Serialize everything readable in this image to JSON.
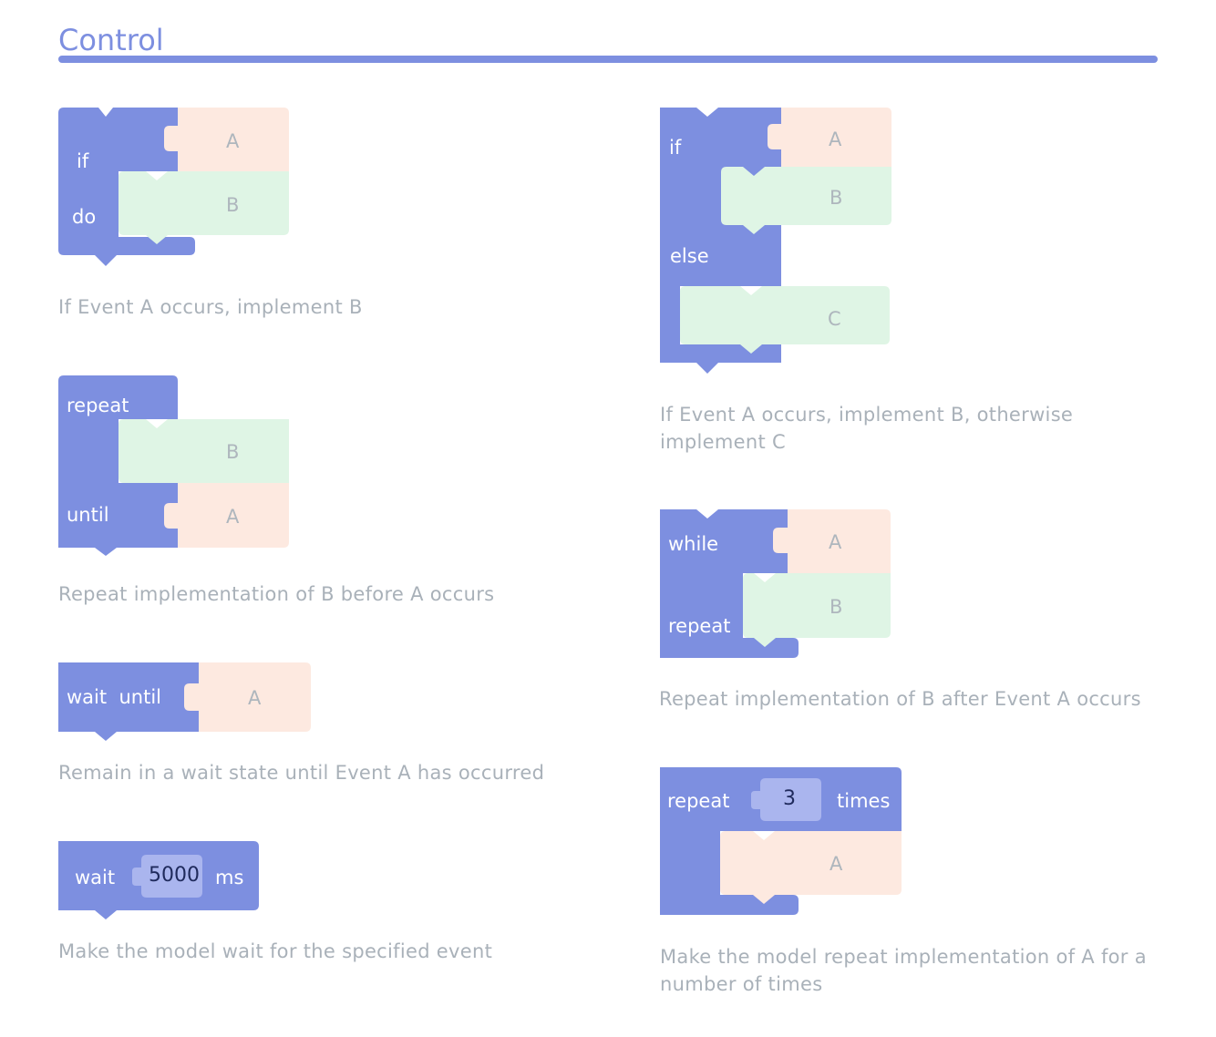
{
  "section": {
    "title": "Control"
  },
  "colors": {
    "control_block": "#7d8fe0",
    "condition_slot": "#fde9e0",
    "statement_slot": "#dff5e5",
    "number_slot": "#aab5ee",
    "caption_text": "#a9b1b9"
  },
  "blocks": {
    "if_do": {
      "kw_if": "if",
      "kw_do": "do",
      "slot_a": "A",
      "slot_b": "B",
      "caption": "If Event A occurs, implement B"
    },
    "repeat_until": {
      "kw_repeat": "repeat",
      "kw_until": "until",
      "slot_b": "B",
      "slot_a": "A",
      "caption": "Repeat implementation of B before A occurs"
    },
    "wait_until": {
      "kw_wait_until": "wait  until",
      "slot_a": "A",
      "caption": "Remain in a wait state until Event A has occurred"
    },
    "wait_ms": {
      "kw_wait": "wait",
      "value": "5000",
      "kw_ms": "ms",
      "caption": "Make the model wait for the specified event"
    },
    "if_else": {
      "kw_if": "if",
      "kw_else": "else",
      "slot_a": "A",
      "slot_b": "B",
      "slot_c": "C",
      "caption_line1": "If Event A occurs, implement B, otherwise",
      "caption_line2": "implement C"
    },
    "while_repeat": {
      "kw_while": "while",
      "kw_repeat": "repeat",
      "slot_a": "A",
      "slot_b": "B",
      "caption": "Repeat implementation of B after Event A occurs"
    },
    "repeat_times": {
      "kw_repeat": "repeat",
      "value": "3",
      "kw_times": "times",
      "slot_a": "A",
      "caption_line1": "Make the model repeat implementation of A for a",
      "caption_line2": "number of times"
    }
  }
}
